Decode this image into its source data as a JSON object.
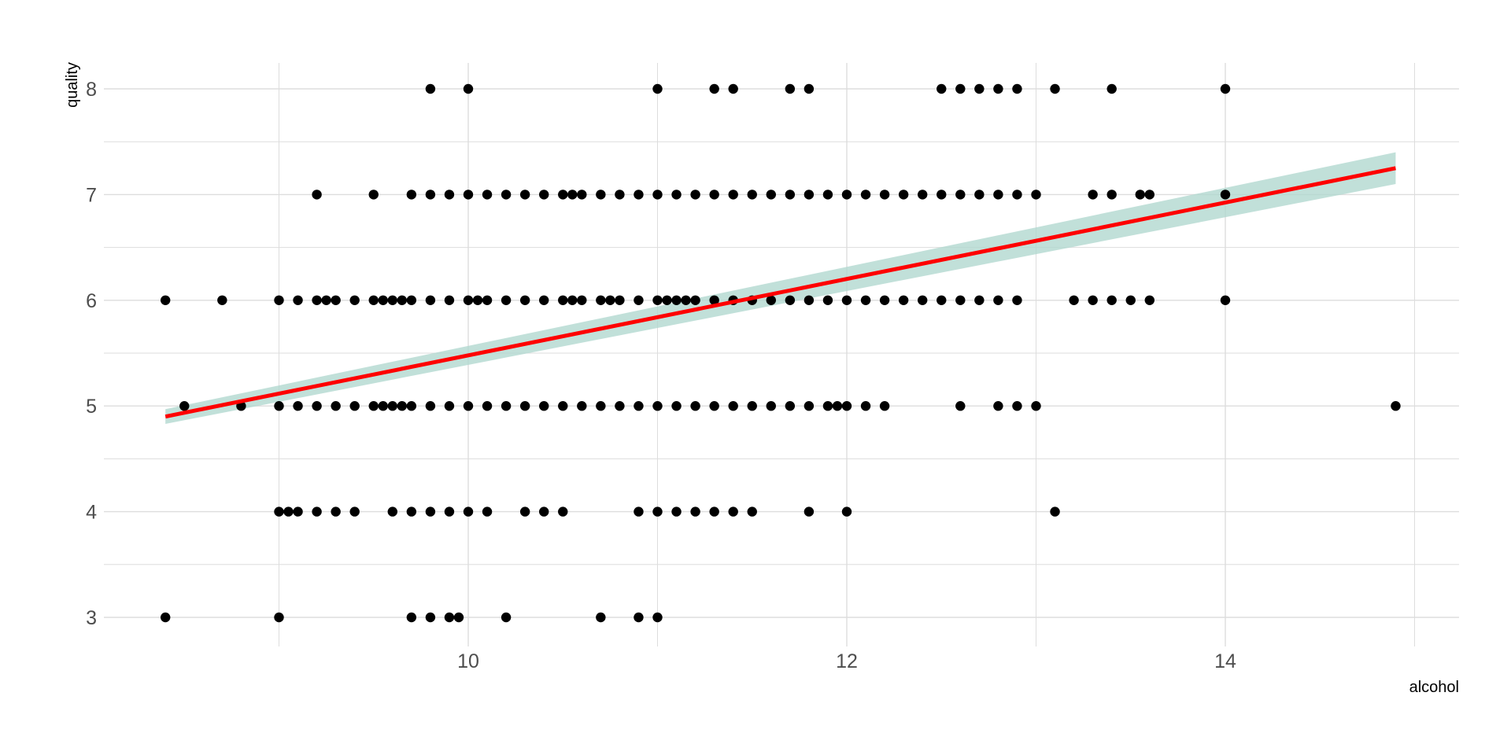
{
  "chart_data": {
    "type": "scatter",
    "xlabel": "alcohol",
    "ylabel": "quality",
    "xlim": [
      8.2,
      15.1
    ],
    "ylim": [
      2.75,
      8.25
    ],
    "x_ticks": [
      10,
      12,
      14
    ],
    "x_minor_ticks": [
      9,
      11,
      13,
      15
    ],
    "y_ticks": [
      3,
      4,
      5,
      6,
      7,
      8
    ],
    "y_minor_ticks": [
      3.5,
      4.5,
      5.5,
      6.5,
      7.5
    ],
    "grid": true,
    "legend": "none",
    "colors": {
      "points": "#000000",
      "fit_line": "#ff0000",
      "confidence_band": "#b2d8cf",
      "grid": "#dddddd",
      "tick_text": "#4d4d4d"
    },
    "points": [
      [
        9.8,
        8
      ],
      [
        10.0,
        8
      ],
      [
        11.0,
        8
      ],
      [
        11.3,
        8
      ],
      [
        11.4,
        8
      ],
      [
        11.7,
        8
      ],
      [
        11.8,
        8
      ],
      [
        12.5,
        8
      ],
      [
        12.6,
        8
      ],
      [
        12.7,
        8
      ],
      [
        12.8,
        8
      ],
      [
        12.9,
        8
      ],
      [
        13.1,
        8
      ],
      [
        13.4,
        8
      ],
      [
        14.0,
        8
      ],
      [
        9.2,
        7
      ],
      [
        9.5,
        7
      ],
      [
        9.7,
        7
      ],
      [
        9.8,
        7
      ],
      [
        9.9,
        7
      ],
      [
        10.0,
        7
      ],
      [
        10.1,
        7
      ],
      [
        10.2,
        7
      ],
      [
        10.3,
        7
      ],
      [
        10.4,
        7
      ],
      [
        10.5,
        7
      ],
      [
        10.55,
        7
      ],
      [
        10.6,
        7
      ],
      [
        10.7,
        7
      ],
      [
        10.8,
        7
      ],
      [
        10.9,
        7
      ],
      [
        11.0,
        7
      ],
      [
        11.1,
        7
      ],
      [
        11.2,
        7
      ],
      [
        11.3,
        7
      ],
      [
        11.4,
        7
      ],
      [
        11.5,
        7
      ],
      [
        11.6,
        7
      ],
      [
        11.7,
        7
      ],
      [
        11.8,
        7
      ],
      [
        11.9,
        7
      ],
      [
        12.0,
        7
      ],
      [
        12.1,
        7
      ],
      [
        12.2,
        7
      ],
      [
        12.3,
        7
      ],
      [
        12.4,
        7
      ],
      [
        12.5,
        7
      ],
      [
        12.6,
        7
      ],
      [
        12.7,
        7
      ],
      [
        12.8,
        7
      ],
      [
        12.9,
        7
      ],
      [
        13.0,
        7
      ],
      [
        13.3,
        7
      ],
      [
        13.4,
        7
      ],
      [
        13.55,
        7
      ],
      [
        13.6,
        7
      ],
      [
        14.0,
        7
      ],
      [
        8.4,
        6
      ],
      [
        8.7,
        6
      ],
      [
        9.0,
        6
      ],
      [
        9.1,
        6
      ],
      [
        9.2,
        6
      ],
      [
        9.25,
        6
      ],
      [
        9.3,
        6
      ],
      [
        9.4,
        6
      ],
      [
        9.5,
        6
      ],
      [
        9.55,
        6
      ],
      [
        9.6,
        6
      ],
      [
        9.65,
        6
      ],
      [
        9.7,
        6
      ],
      [
        9.8,
        6
      ],
      [
        9.9,
        6
      ],
      [
        10.0,
        6
      ],
      [
        10.05,
        6
      ],
      [
        10.1,
        6
      ],
      [
        10.2,
        6
      ],
      [
        10.3,
        6
      ],
      [
        10.4,
        6
      ],
      [
        10.5,
        6
      ],
      [
        10.55,
        6
      ],
      [
        10.6,
        6
      ],
      [
        10.7,
        6
      ],
      [
        10.75,
        6
      ],
      [
        10.8,
        6
      ],
      [
        10.9,
        6
      ],
      [
        11.0,
        6
      ],
      [
        11.05,
        6
      ],
      [
        11.1,
        6
      ],
      [
        11.15,
        6
      ],
      [
        11.2,
        6
      ],
      [
        11.3,
        6
      ],
      [
        11.4,
        6
      ],
      [
        11.5,
        6
      ],
      [
        11.6,
        6
      ],
      [
        11.7,
        6
      ],
      [
        11.8,
        6
      ],
      [
        11.9,
        6
      ],
      [
        12.0,
        6
      ],
      [
        12.1,
        6
      ],
      [
        12.2,
        6
      ],
      [
        12.3,
        6
      ],
      [
        12.4,
        6
      ],
      [
        12.5,
        6
      ],
      [
        12.6,
        6
      ],
      [
        12.7,
        6
      ],
      [
        12.8,
        6
      ],
      [
        12.9,
        6
      ],
      [
        13.2,
        6
      ],
      [
        13.3,
        6
      ],
      [
        13.4,
        6
      ],
      [
        13.5,
        6
      ],
      [
        13.6,
        6
      ],
      [
        14.0,
        6
      ],
      [
        8.5,
        5
      ],
      [
        8.8,
        5
      ],
      [
        9.0,
        5
      ],
      [
        9.1,
        5
      ],
      [
        9.2,
        5
      ],
      [
        9.3,
        5
      ],
      [
        9.4,
        5
      ],
      [
        9.5,
        5
      ],
      [
        9.55,
        5
      ],
      [
        9.6,
        5
      ],
      [
        9.65,
        5
      ],
      [
        9.7,
        5
      ],
      [
        9.8,
        5
      ],
      [
        9.9,
        5
      ],
      [
        10.0,
        5
      ],
      [
        10.1,
        5
      ],
      [
        10.2,
        5
      ],
      [
        10.3,
        5
      ],
      [
        10.4,
        5
      ],
      [
        10.5,
        5
      ],
      [
        10.6,
        5
      ],
      [
        10.7,
        5
      ],
      [
        10.8,
        5
      ],
      [
        10.9,
        5
      ],
      [
        11.0,
        5
      ],
      [
        11.1,
        5
      ],
      [
        11.2,
        5
      ],
      [
        11.3,
        5
      ],
      [
        11.4,
        5
      ],
      [
        11.5,
        5
      ],
      [
        11.6,
        5
      ],
      [
        11.7,
        5
      ],
      [
        11.8,
        5
      ],
      [
        11.9,
        5
      ],
      [
        11.95,
        5
      ],
      [
        12.0,
        5
      ],
      [
        12.1,
        5
      ],
      [
        12.2,
        5
      ],
      [
        12.6,
        5
      ],
      [
        12.8,
        5
      ],
      [
        12.9,
        5
      ],
      [
        13.0,
        5
      ],
      [
        14.9,
        5
      ],
      [
        9.0,
        4
      ],
      [
        9.05,
        4
      ],
      [
        9.1,
        4
      ],
      [
        9.2,
        4
      ],
      [
        9.3,
        4
      ],
      [
        9.4,
        4
      ],
      [
        9.6,
        4
      ],
      [
        9.7,
        4
      ],
      [
        9.8,
        4
      ],
      [
        9.9,
        4
      ],
      [
        10.0,
        4
      ],
      [
        10.1,
        4
      ],
      [
        10.3,
        4
      ],
      [
        10.4,
        4
      ],
      [
        10.5,
        4
      ],
      [
        10.9,
        4
      ],
      [
        11.0,
        4
      ],
      [
        11.1,
        4
      ],
      [
        11.2,
        4
      ],
      [
        11.3,
        4
      ],
      [
        11.4,
        4
      ],
      [
        11.5,
        4
      ],
      [
        11.8,
        4
      ],
      [
        12.0,
        4
      ],
      [
        13.1,
        4
      ],
      [
        8.4,
        3
      ],
      [
        9.0,
        3
      ],
      [
        9.7,
        3
      ],
      [
        9.8,
        3
      ],
      [
        9.9,
        3
      ],
      [
        9.95,
        3
      ],
      [
        10.2,
        3
      ],
      [
        10.7,
        3
      ],
      [
        10.9,
        3
      ],
      [
        11.0,
        3
      ]
    ],
    "fit": {
      "x_start": 8.4,
      "x_end": 14.9,
      "y_start": 4.9,
      "y_end": 7.25,
      "band_start": 0.07,
      "band_end": 0.15
    }
  }
}
